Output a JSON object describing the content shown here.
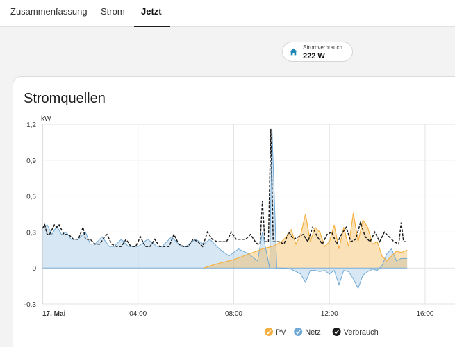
{
  "tabs": [
    {
      "label": "Zusammenfassung",
      "active": false
    },
    {
      "label": "Strom",
      "active": false
    },
    {
      "label": "Jetzt",
      "active": true
    }
  ],
  "chip": {
    "label": "Stromverbrauch",
    "value": "222 W",
    "icon": "home-icon",
    "icon_color": "#1e88b4"
  },
  "card": {
    "title": "Stromquellen"
  },
  "chart_data": {
    "type": "area",
    "title": "Stromquellen",
    "unit": "kW",
    "ylim": [
      -0.3,
      1.2
    ],
    "yticks": [
      -0.3,
      0,
      0.3,
      0.6,
      0.9,
      1.2
    ],
    "ytick_labels": [
      "-0,3",
      "0",
      "0,3",
      "0,6",
      "0,9",
      "1,2"
    ],
    "xlim": [
      0,
      17.25
    ],
    "xticks": [
      0,
      4,
      8,
      12,
      16
    ],
    "xtick_labels": [
      "17. Mai",
      "04:00",
      "08:00",
      "12:00",
      "16:00"
    ],
    "grid": true,
    "legend_position": "bottom-right",
    "series": [
      {
        "name": "PV",
        "color": "#f5b041",
        "x": [
          6.75,
          7.2,
          7.6,
          8.0,
          8.4,
          8.8,
          9.2,
          9.6,
          10.0,
          10.2,
          10.4,
          10.6,
          10.8,
          11.0,
          11.2,
          11.4,
          11.6,
          11.8,
          12.0,
          12.2,
          12.4,
          12.6,
          12.8,
          13.0,
          13.2,
          13.4,
          13.6,
          13.8,
          14.0,
          14.2,
          14.4,
          14.6,
          14.8,
          15.0,
          15.25
        ],
        "values": [
          0.0,
          0.03,
          0.05,
          0.07,
          0.1,
          0.13,
          0.16,
          0.18,
          0.22,
          0.26,
          0.32,
          0.2,
          0.28,
          0.45,
          0.22,
          0.34,
          0.3,
          0.18,
          0.22,
          0.36,
          0.16,
          0.34,
          0.18,
          0.46,
          0.22,
          0.4,
          0.34,
          0.2,
          0.22,
          0.1,
          0.06,
          0.1,
          0.14,
          0.13,
          0.15
        ]
      },
      {
        "name": "Netz",
        "color": "#6fa8d4",
        "x": [
          0.0,
          0.2,
          0.4,
          0.6,
          0.8,
          1.0,
          1.2,
          1.5,
          1.8,
          2.0,
          2.2,
          2.5,
          2.8,
          3.0,
          3.3,
          3.6,
          4.0,
          4.4,
          4.8,
          5.0,
          5.4,
          5.8,
          6.0,
          6.4,
          6.75,
          7.0,
          7.4,
          7.8,
          8.2,
          8.6,
          9.0,
          9.2,
          9.5,
          9.6,
          9.8,
          10.0,
          10.4,
          10.8,
          11.0,
          11.2,
          11.4,
          11.6,
          11.8,
          12.0,
          12.2,
          12.4,
          12.6,
          12.8,
          13.0,
          13.2,
          13.4,
          13.6,
          13.8,
          14.0,
          14.2,
          14.4,
          14.6,
          14.8,
          15.0,
          15.25
        ],
        "values": [
          0.34,
          0.36,
          0.28,
          0.35,
          0.28,
          0.3,
          0.24,
          0.24,
          0.3,
          0.2,
          0.2,
          0.26,
          0.18,
          0.18,
          0.24,
          0.18,
          0.18,
          0.24,
          0.18,
          0.18,
          0.26,
          0.18,
          0.18,
          0.24,
          0.2,
          0.24,
          0.16,
          0.1,
          0.16,
          0.12,
          0.06,
          0.3,
          0.0,
          1.15,
          0.0,
          0.0,
          -0.01,
          -0.05,
          -0.12,
          -0.02,
          -0.02,
          -0.03,
          -0.02,
          -0.05,
          -0.02,
          -0.14,
          -0.02,
          -0.03,
          -0.09,
          -0.17,
          -0.06,
          -0.03,
          -0.01,
          -0.02,
          0.02,
          0.12,
          0.16,
          0.06,
          0.08,
          0.08
        ]
      },
      {
        "name": "Verbrauch",
        "color": "#1a1a1a",
        "x": [
          0.0,
          0.1,
          0.2,
          0.3,
          0.5,
          0.6,
          0.7,
          0.9,
          1.0,
          1.1,
          1.3,
          1.5,
          1.7,
          1.8,
          2.0,
          2.2,
          2.4,
          2.6,
          2.7,
          2.9,
          3.1,
          3.3,
          3.5,
          3.7,
          3.9,
          4.1,
          4.3,
          4.5,
          4.7,
          4.9,
          5.1,
          5.3,
          5.5,
          5.7,
          5.9,
          6.1,
          6.3,
          6.5,
          6.7,
          6.9,
          7.1,
          7.3,
          7.5,
          7.7,
          7.9,
          8.1,
          8.3,
          8.5,
          8.7,
          8.9,
          9.0,
          9.1,
          9.2,
          9.3,
          9.45,
          9.55,
          9.6,
          9.65,
          9.75,
          9.9,
          10.1,
          10.3,
          10.5,
          10.7,
          10.9,
          11.1,
          11.3,
          11.5,
          11.7,
          11.9,
          12.1,
          12.3,
          12.5,
          12.7,
          12.9,
          13.1,
          13.3,
          13.5,
          13.7,
          13.9,
          14.1,
          14.3,
          14.5,
          14.7,
          14.9,
          15.0,
          15.1,
          15.25
        ],
        "values": [
          0.33,
          0.36,
          0.28,
          0.28,
          0.36,
          0.34,
          0.36,
          0.28,
          0.28,
          0.28,
          0.24,
          0.24,
          0.34,
          0.24,
          0.24,
          0.2,
          0.2,
          0.26,
          0.28,
          0.2,
          0.18,
          0.18,
          0.24,
          0.18,
          0.18,
          0.26,
          0.18,
          0.18,
          0.24,
          0.18,
          0.18,
          0.18,
          0.28,
          0.2,
          0.18,
          0.18,
          0.24,
          0.22,
          0.18,
          0.3,
          0.24,
          0.22,
          0.22,
          0.22,
          0.3,
          0.24,
          0.24,
          0.24,
          0.28,
          0.22,
          0.2,
          0.2,
          0.56,
          0.22,
          0.22,
          1.16,
          0.7,
          0.22,
          0.22,
          0.22,
          0.2,
          0.3,
          0.24,
          0.26,
          0.28,
          0.22,
          0.34,
          0.26,
          0.2,
          0.28,
          0.3,
          0.2,
          0.28,
          0.34,
          0.22,
          0.24,
          0.38,
          0.26,
          0.22,
          0.3,
          0.22,
          0.3,
          0.26,
          0.22,
          0.2,
          0.38,
          0.22,
          0.22
        ]
      }
    ]
  }
}
